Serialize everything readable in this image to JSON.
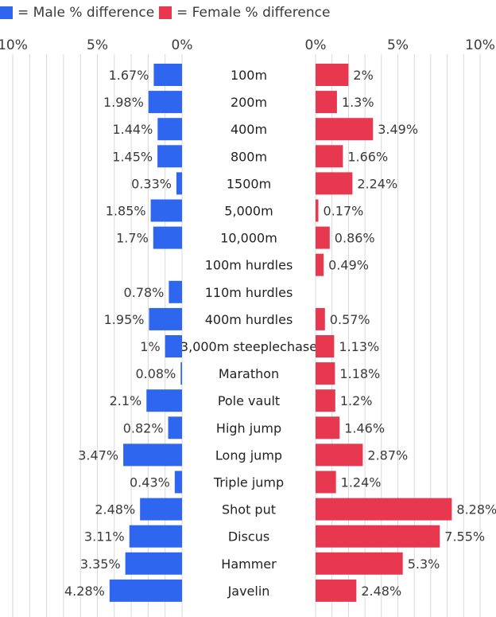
{
  "legend": {
    "male_label": "= Male % difference",
    "female_label": "= Female % difference"
  },
  "colors": {
    "male": "#2e66f0",
    "female": "#e8384f",
    "grid": "#d9d9d9",
    "text": "#3a3a3a"
  },
  "chart_data": [
    {
      "type": "bar",
      "title": "",
      "orientation": "horizontal",
      "series_name": "Male % difference",
      "xlim": [
        10,
        0
      ],
      "tick_labels": [
        "10%",
        "5%",
        "0%"
      ],
      "tick_values": [
        10,
        5,
        0
      ],
      "categories": [
        "100m",
        "200m",
        "400m",
        "800m",
        "1500m",
        "5,000m",
        "10,000m",
        "100m hurdles",
        "110m hurdles",
        "400m hurdles",
        "3,000m steeplechase",
        "Marathon",
        "Pole vault",
        "High jump",
        "Long jump",
        "Triple jump",
        "Shot put",
        "Discus",
        "Hammer",
        "Javelin"
      ],
      "values": [
        1.67,
        1.98,
        1.44,
        1.45,
        0.33,
        1.85,
        1.7,
        null,
        0.78,
        1.95,
        1,
        0.08,
        2.1,
        0.82,
        3.47,
        0.43,
        2.48,
        3.11,
        3.35,
        4.28
      ],
      "value_labels": [
        "1.67%",
        "1.98%",
        "1.44%",
        "1.45%",
        "0.33%",
        "1.85%",
        "1.7%",
        "",
        "0.78%",
        "1.95%",
        "1%",
        "0.08%",
        "2.1%",
        "0.82%",
        "3.47%",
        "0.43%",
        "2.48%",
        "3.11%",
        "3.35%",
        "4.28%"
      ]
    },
    {
      "type": "bar",
      "title": "",
      "orientation": "horizontal",
      "series_name": "Female % difference",
      "xlim": [
        0,
        10
      ],
      "tick_labels": [
        "0%",
        "5%",
        "10%"
      ],
      "tick_values": [
        0,
        5,
        10
      ],
      "categories": [
        "100m",
        "200m",
        "400m",
        "800m",
        "1500m",
        "5,000m",
        "10,000m",
        "100m hurdles",
        "110m hurdles",
        "400m hurdles",
        "3,000m steeplechase",
        "Marathon",
        "Pole vault",
        "High jump",
        "Long jump",
        "Triple jump",
        "Shot put",
        "Discus",
        "Hammer",
        "Javelin"
      ],
      "values": [
        2,
        1.3,
        3.49,
        1.66,
        2.24,
        0.17,
        0.86,
        0.49,
        null,
        0.57,
        1.13,
        1.18,
        1.2,
        1.46,
        2.87,
        1.24,
        8.28,
        7.55,
        5.3,
        2.48
      ],
      "value_labels": [
        "2%",
        "1.3%",
        "3.49%",
        "1.66%",
        "2.24%",
        "0.17%",
        "0.86%",
        "0.49%",
        "",
        "0.57%",
        "1.13%",
        "1.18%",
        "1.2%",
        "1.46%",
        "2.87%",
        "1.24%",
        "8.28%",
        "7.55%",
        "5.3%",
        "2.48%"
      ]
    }
  ]
}
